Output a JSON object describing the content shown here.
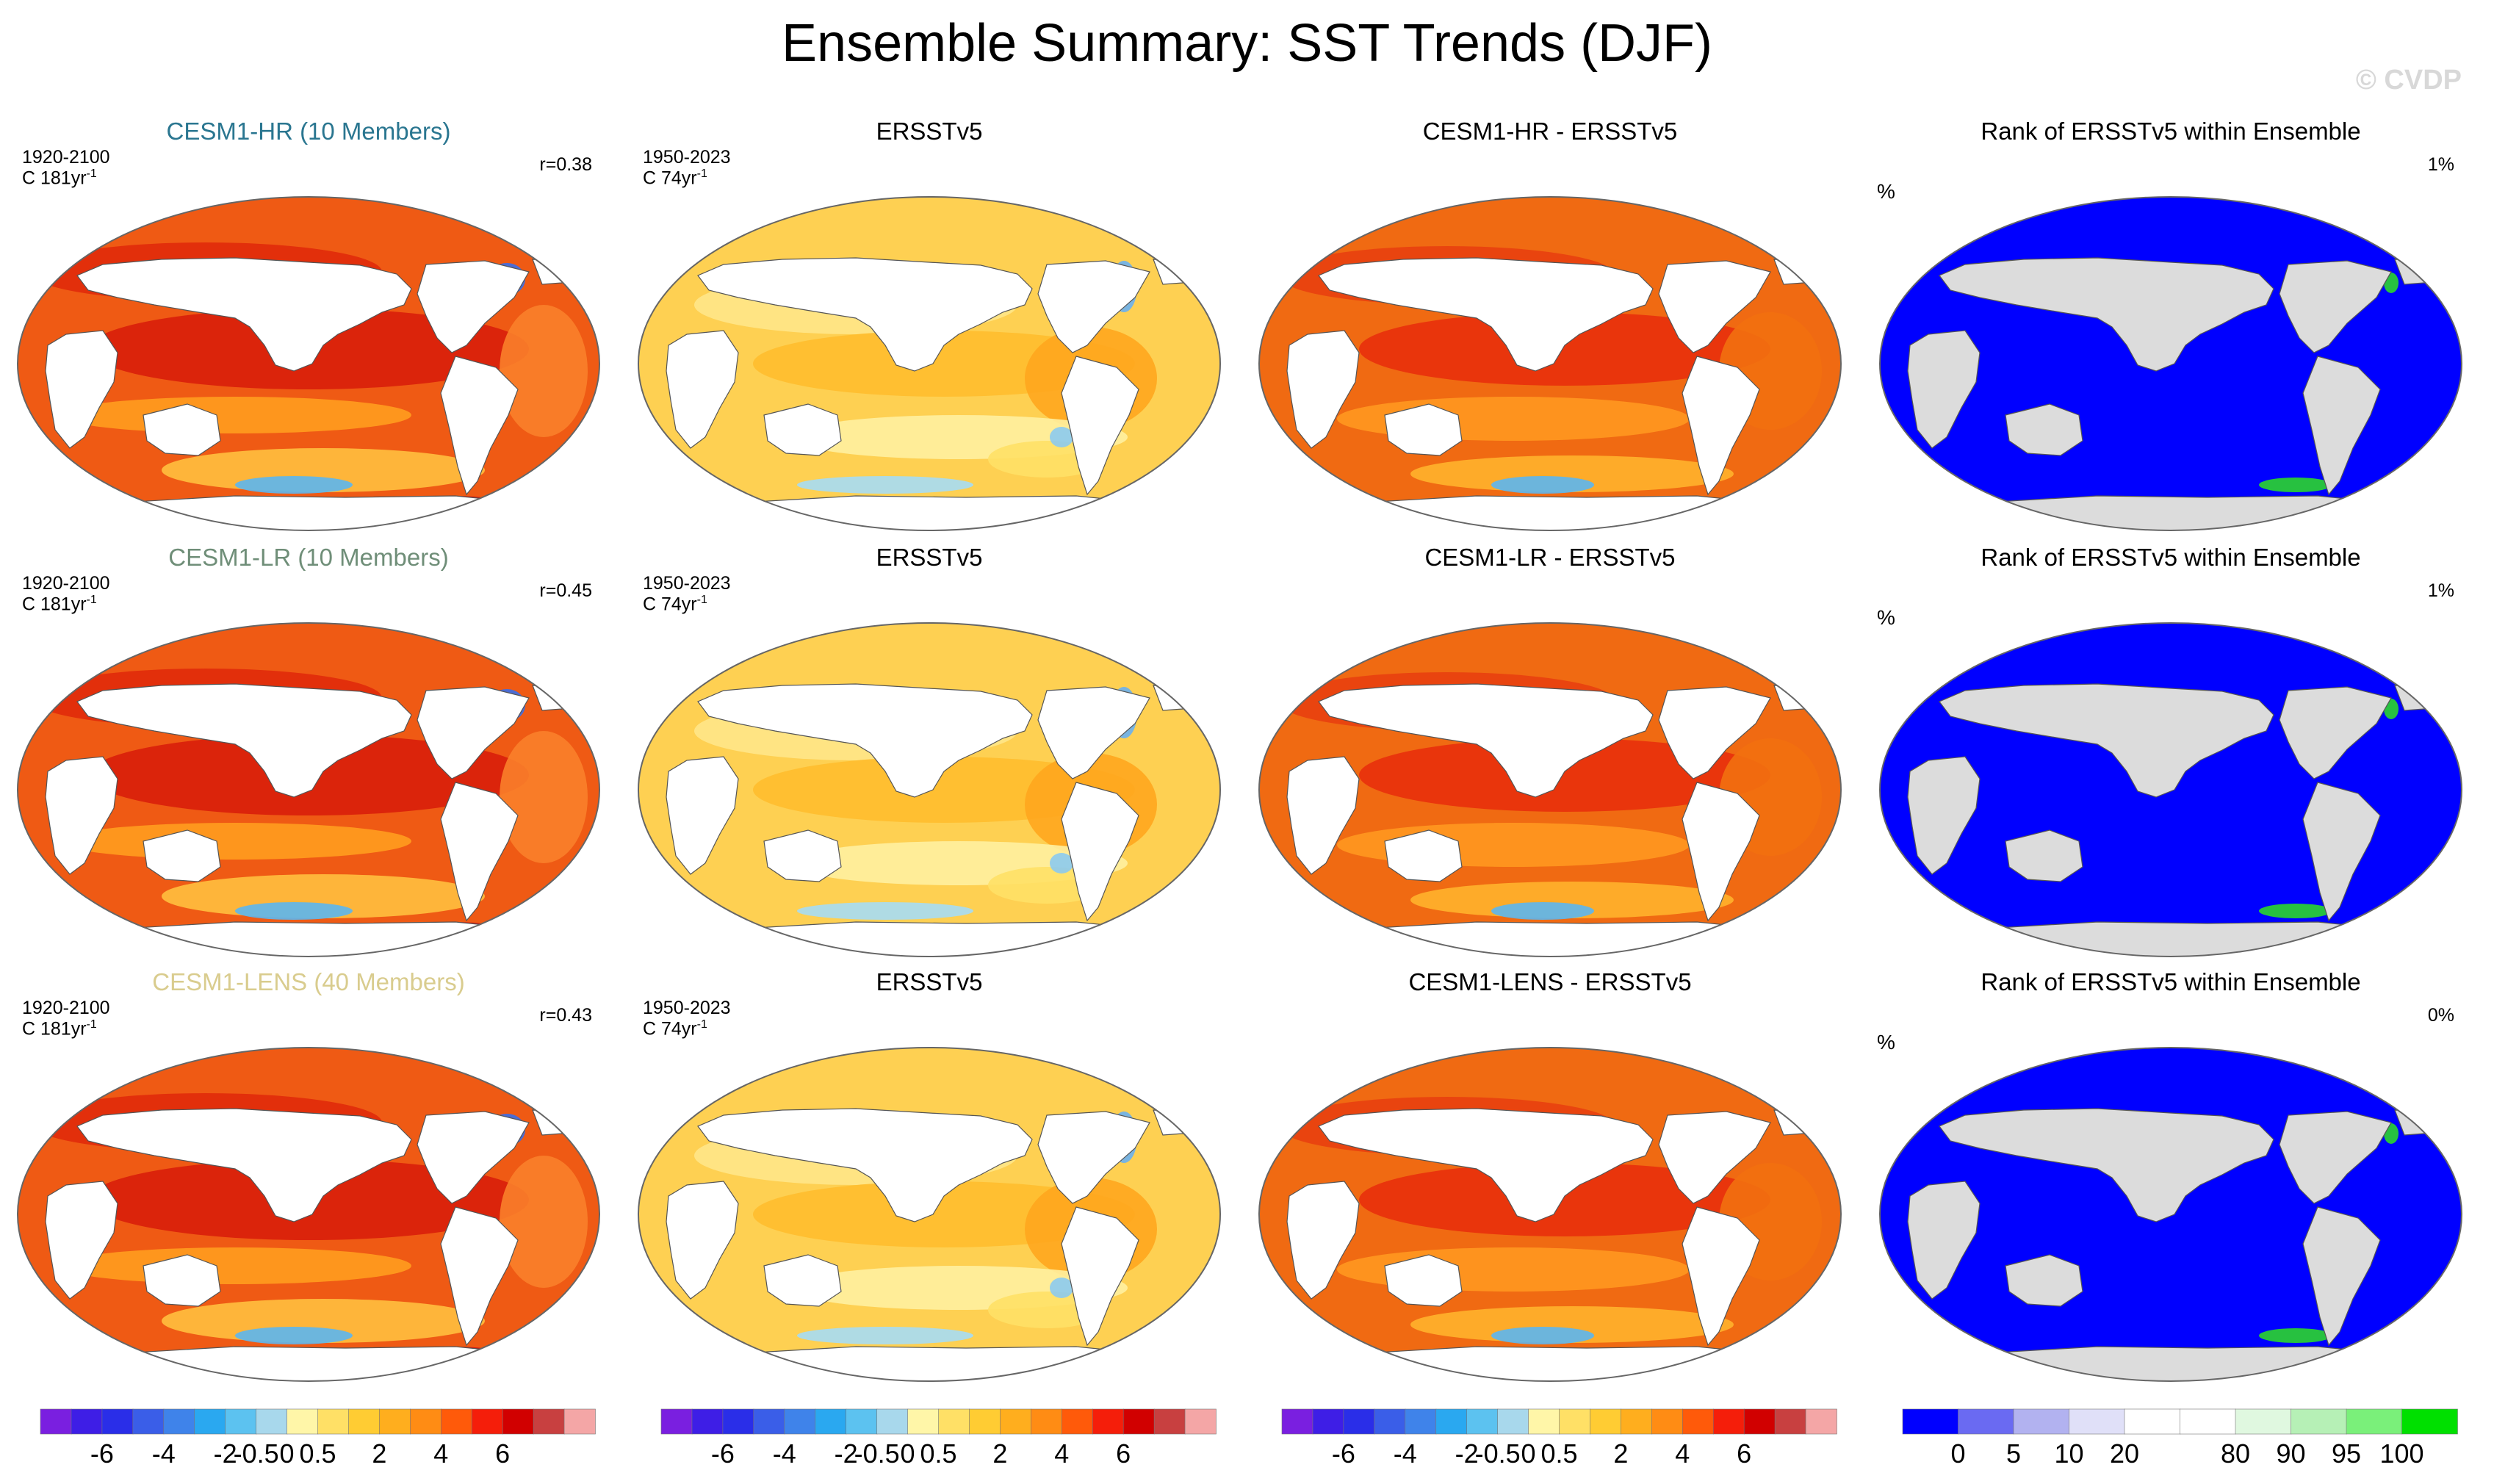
{
  "title": "Ensemble Summary: SST Trends (DJF)",
  "watermark": "© CVDP",
  "rows": [
    {
      "model": {
        "title": "CESM1-HR (10 Members)",
        "title_color": "#2a7690",
        "period": "1920-2100",
        "trend": "C 181yr",
        "sup": "-1",
        "r": "r=0.38"
      },
      "obs": {
        "title": "ERSSTv5",
        "period": "1950-2023",
        "trend": "C 74yr",
        "sup": "-1"
      },
      "diff": {
        "title": "CESM1-HR - ERSSTv5"
      },
      "rank": {
        "title": "Rank of ERSSTv5 within Ensemble",
        "unit": "%",
        "pct": "1%"
      }
    },
    {
      "model": {
        "title": "CESM1-LR (10 Members)",
        "title_color": "#6f8e78",
        "period": "1920-2100",
        "trend": "C 181yr",
        "sup": "-1",
        "r": "r=0.45"
      },
      "obs": {
        "title": "ERSSTv5",
        "period": "1950-2023",
        "trend": "C 74yr",
        "sup": "-1"
      },
      "diff": {
        "title": "CESM1-LR - ERSSTv5"
      },
      "rank": {
        "title": "Rank of ERSSTv5 within Ensemble",
        "unit": "%",
        "pct": "1%"
      }
    },
    {
      "model": {
        "title": "CESM1-LENS (40 Members)",
        "title_color": "#d9cc8e",
        "period": "1920-2100",
        "trend": "C 181yr",
        "sup": "-1",
        "r": "r=0.43"
      },
      "obs": {
        "title": "ERSSTv5",
        "period": "1950-2023",
        "trend": "C 74yr",
        "sup": "-1"
      },
      "diff": {
        "title": "CESM1-LENS - ERSSTv5"
      },
      "rank": {
        "title": "Rank of ERSSTv5 within Ensemble",
        "unit": "%",
        "pct": "0%"
      }
    }
  ],
  "colorbars": {
    "sst": {
      "colors": [
        "#7a1fe0",
        "#3e1ee6",
        "#2a2ee8",
        "#3a5ee8",
        "#3f83ea",
        "#2aa8f0",
        "#5cc2f0",
        "#a8d8ec",
        "#fff6a8",
        "#ffe066",
        "#ffcc33",
        "#ffae1e",
        "#ff8c14",
        "#ff5a0a",
        "#f51e0a",
        "#d10000",
        "#c84040",
        "#f4a6a6"
      ],
      "ticks": [
        "-6",
        "-4",
        "-2",
        "-0.5",
        "0",
        "0.5",
        "2",
        "4",
        "6"
      ]
    },
    "rank": {
      "colors": [
        "#0000ff",
        "#6a6af2",
        "#b2b2f0",
        "#e0e0f8",
        "#ffffff",
        "#ffffff",
        "#e0f8e0",
        "#b6f0b6",
        "#7af07a",
        "#00e000"
      ],
      "ticks": [
        "0",
        "5",
        "10",
        "20",
        "80",
        "90",
        "95",
        "100"
      ]
    }
  },
  "chart_data": {
    "type": "heatmap",
    "title": "Ensemble Summary: SST Trends (DJF)",
    "variable": "SST trend, DJF",
    "columns": [
      "model ensemble mean trend",
      "ERSSTv5 trend",
      "model minus ERSSTv5",
      "rank of ERSSTv5 within ensemble"
    ],
    "rows": [
      "CESM1-HR (10 Members)",
      "CESM1-LR (10 Members)",
      "CESM1-LENS (40 Members)"
    ],
    "pattern_correlation": [
      0.38,
      0.45,
      0.43
    ],
    "rank_outside_percent": [
      1,
      1,
      0
    ],
    "trend_colorbar_levels": [
      -6,
      -5,
      -4,
      -3,
      -2,
      -1,
      -0.5,
      -0.2,
      0,
      0.2,
      0.5,
      1,
      2,
      3,
      4,
      5,
      6
    ],
    "trend_colorbar_ticks": [
      -6,
      -4,
      -2,
      -0.5,
      0,
      0.5,
      2,
      4,
      6
    ],
    "rank_colorbar_levels": [
      0,
      5,
      10,
      20,
      80,
      90,
      95,
      100
    ]
  }
}
